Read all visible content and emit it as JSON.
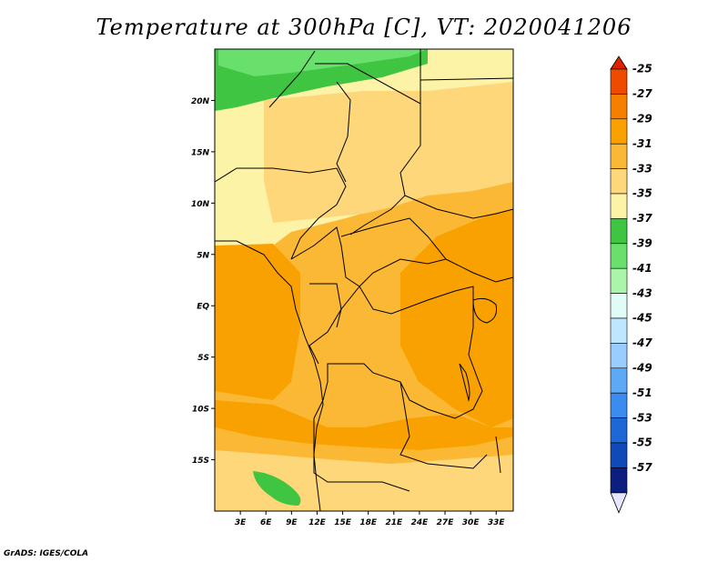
{
  "title": "Temperature at 300hPa [C], VT: 2020041206",
  "credit": "GrADS: IGES/COLA",
  "map": {
    "lat_labels": [
      "20N",
      "15N",
      "10N",
      "5N",
      "EQ",
      "5S",
      "10S",
      "15S"
    ],
    "lon_labels": [
      "3E",
      "6E",
      "9E",
      "12E",
      "15E",
      "18E",
      "21E",
      "24E",
      "27E",
      "30E",
      "33E"
    ],
    "lat_values": [
      20,
      15,
      10,
      5,
      0,
      -5,
      -10,
      -15
    ],
    "lon_values": [
      3,
      6,
      9,
      12,
      15,
      18,
      21,
      24,
      27,
      30,
      33
    ],
    "lon_range": [
      0,
      35
    ],
    "lat_range": [
      -20,
      25
    ]
  },
  "colorbar": {
    "labels": [
      "-25",
      "-27",
      "-29",
      "-31",
      "-33",
      "-35",
      "-37",
      "-39",
      "-41",
      "-43",
      "-45",
      "-47",
      "-49",
      "-51",
      "-53",
      "-55",
      "-57"
    ],
    "colors": [
      "#ee4a00",
      "#f67f00",
      "#f9a100",
      "#fbb834",
      "#fdd77a",
      "#fdf3a6",
      "#3fc542",
      "#68e06b",
      "#aaf5a9",
      "#e1fbf6",
      "#bfe6ff",
      "#99ccff",
      "#5ea9f5",
      "#3c8cef",
      "#1e67d6",
      "#104ab8",
      "#0c1f80"
    ],
    "top_triangle_color": "#dd2200",
    "bottom_triangle_color": "#e6e6ff"
  }
}
